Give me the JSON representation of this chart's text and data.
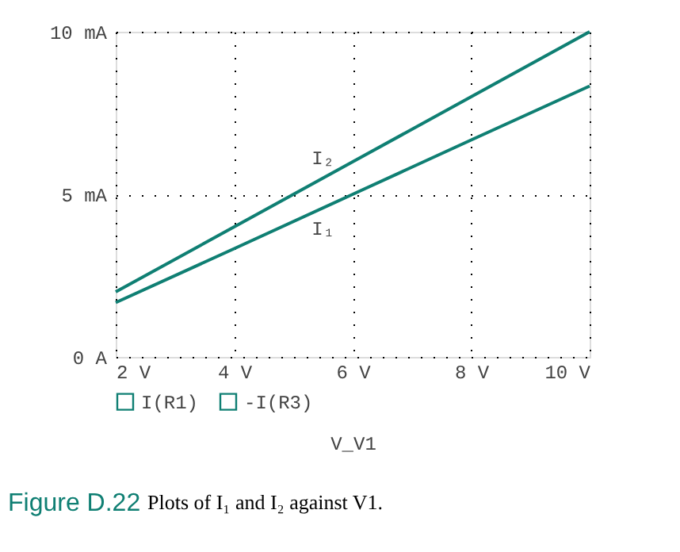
{
  "chart_data": {
    "type": "line",
    "x": [
      2,
      4,
      6,
      8,
      10
    ],
    "series": [
      {
        "name": "I(R1)",
        "color": "#0f7f73",
        "values": [
          1.67,
          3.33,
          5,
          6.67,
          8.33
        ]
      },
      {
        "name": "-I(R3)",
        "color": "#0f7f73",
        "values": [
          2,
          4,
          6,
          8,
          10
        ]
      }
    ],
    "xlabel": "V_V1",
    "xlim": [
      2,
      10
    ],
    "xticks": [
      {
        "value": 2,
        "label": "2 V"
      },
      {
        "value": 4,
        "label": "4 V"
      },
      {
        "value": 6,
        "label": "6 V"
      },
      {
        "value": 8,
        "label": "8 V"
      },
      {
        "value": 10,
        "label": "10 V"
      }
    ],
    "ylim": [
      0,
      10
    ],
    "yticks": [
      {
        "value": 0,
        "label": "0 A"
      },
      {
        "value": 5,
        "label": "5 mA"
      },
      {
        "value": 10,
        "label": "10 mA"
      }
    ],
    "grid": true,
    "legend": "bottom",
    "marker": "none",
    "line_style": "solid",
    "annotations": [
      {
        "text": "I₂",
        "x": 5.5,
        "y": 5.5
      },
      {
        "text": "I₁",
        "x": 5.5,
        "y": 4.58
      },
      "Figure D.22",
      "Plots of I₁ and I₂ against V1."
    ]
  }
}
